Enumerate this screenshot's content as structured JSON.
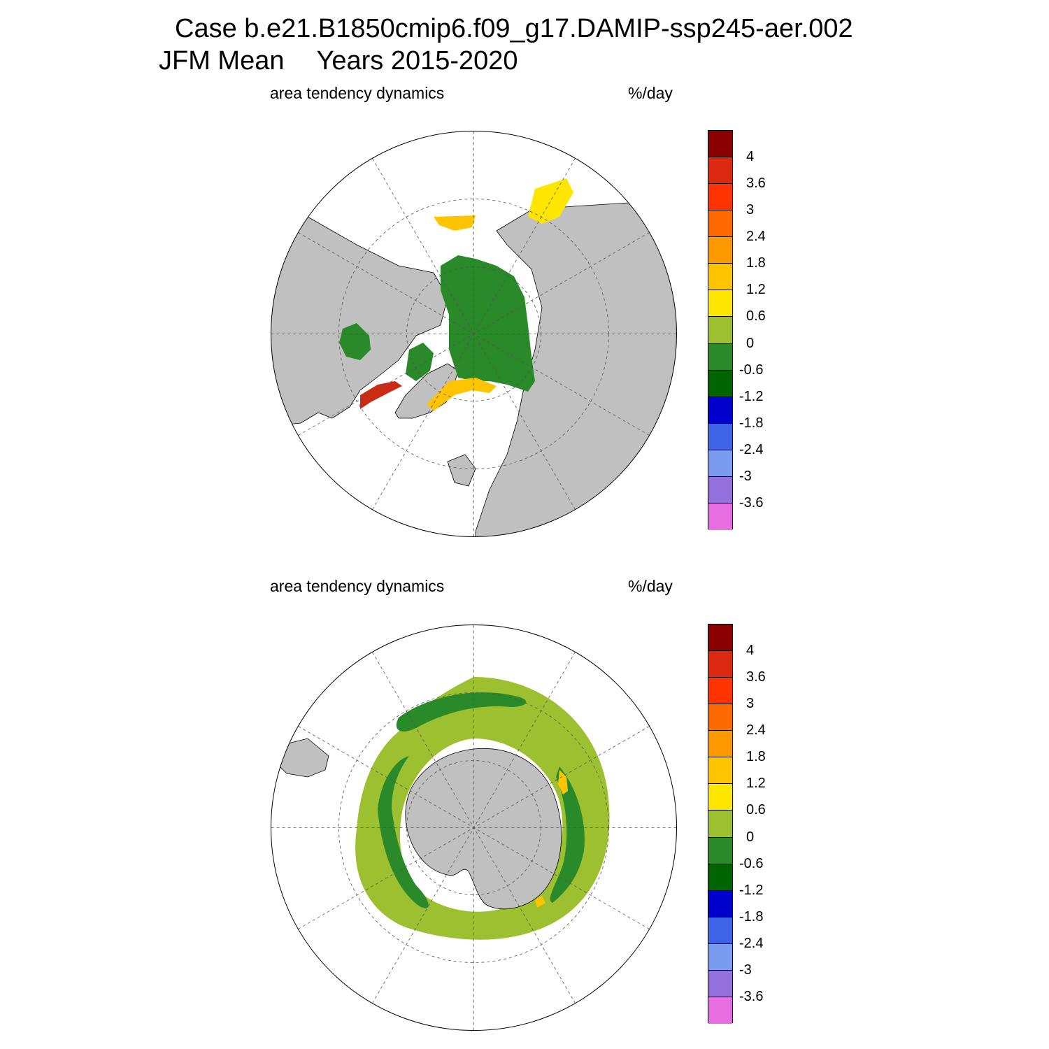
{
  "header": {
    "case_line": "Case b.e21.B1850cmip6.f09_g17.DAMIP-ssp245-aer.002",
    "season": "JFM Mean",
    "years": "Years 2015-2020"
  },
  "panels": [
    {
      "id": "north",
      "label": "area tendency dynamics",
      "unit": "%/day",
      "hemisphere": "Arctic"
    },
    {
      "id": "south",
      "label": "area tendency dynamics",
      "unit": "%/day",
      "hemisphere": "Antarctic"
    }
  ],
  "colorbar": {
    "labels": [
      "4",
      "3.6",
      "3",
      "2.4",
      "1.8",
      "1.2",
      "0.6",
      "0",
      "-0.6",
      "-1.2",
      "-1.8",
      "-2.4",
      "-3",
      "-3.6"
    ],
    "colors": [
      "#8b0000",
      "#dc2a12",
      "#ff3300",
      "#ff6a00",
      "#ff9900",
      "#ffc400",
      "#ffe600",
      "#9dc030",
      "#2a8a2a",
      "#006400",
      "#0000cd",
      "#3d64e6",
      "#7a9cf0",
      "#9370db",
      "#e66ee0"
    ]
  },
  "map_colors": {
    "land": "#c0c0c0",
    "ocean": "#ffffff",
    "grid": "#555555"
  }
}
